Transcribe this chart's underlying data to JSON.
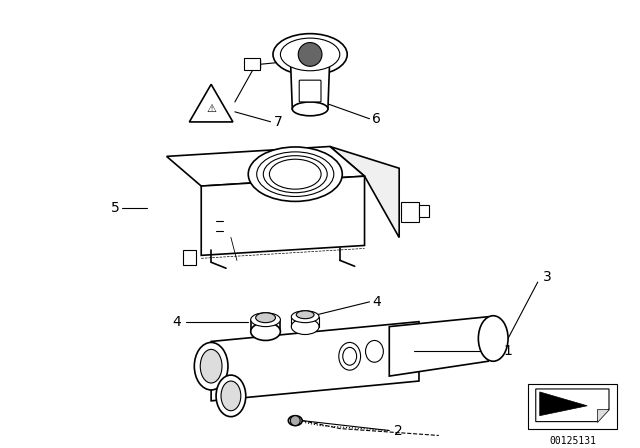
{
  "bg_color": "#ffffff",
  "part_number": "00125131",
  "lw": 0.8,
  "lw_thick": 1.2
}
